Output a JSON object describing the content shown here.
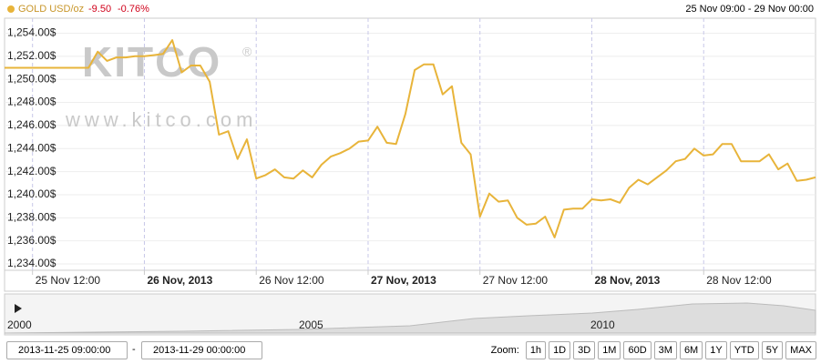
{
  "header": {
    "symbol": "GOLD USD/oz",
    "change": "-9.50",
    "change_percent": "-0.76%",
    "range": "25 Nov 09:00 - 29 Nov 00:00"
  },
  "watermark": {
    "logo": "KITCO",
    "registered": "®",
    "url": "www.kitco.com"
  },
  "chart_data": {
    "type": "line",
    "grid": true,
    "x": [
      "2013-11-25T09:00",
      "2013-11-25T18:00",
      "2013-11-25T19:00",
      "2013-11-25T20:00",
      "2013-11-25T21:00",
      "2013-11-25T22:00",
      "2013-11-25T23:00",
      "2013-11-26T00:00",
      "2013-11-26T01:00",
      "2013-11-26T02:00",
      "2013-11-26T03:00",
      "2013-11-26T04:00",
      "2013-11-26T05:00",
      "2013-11-26T06:00",
      "2013-11-26T07:00",
      "2013-11-26T08:00",
      "2013-11-26T09:00",
      "2013-11-26T10:00",
      "2013-11-26T11:00",
      "2013-11-26T12:00",
      "2013-11-26T13:00",
      "2013-11-26T14:00",
      "2013-11-26T15:00",
      "2013-11-26T16:00",
      "2013-11-26T17:00",
      "2013-11-26T18:00",
      "2013-11-26T19:00",
      "2013-11-26T20:00",
      "2013-11-26T21:00",
      "2013-11-26T22:00",
      "2013-11-26T23:00",
      "2013-11-27T00:00",
      "2013-11-27T01:00",
      "2013-11-27T02:00",
      "2013-11-27T03:00",
      "2013-11-27T04:00",
      "2013-11-27T05:00",
      "2013-11-27T06:00",
      "2013-11-27T07:00",
      "2013-11-27T08:00",
      "2013-11-27T09:00",
      "2013-11-27T10:00",
      "2013-11-27T11:00",
      "2013-11-27T12:00",
      "2013-11-27T13:00",
      "2013-11-27T14:00",
      "2013-11-27T15:00",
      "2013-11-27T16:00",
      "2013-11-27T17:00",
      "2013-11-27T18:00",
      "2013-11-27T19:00",
      "2013-11-27T20:00",
      "2013-11-27T21:00",
      "2013-11-27T22:00",
      "2013-11-27T23:00",
      "2013-11-28T00:00",
      "2013-11-28T01:00",
      "2013-11-28T02:00",
      "2013-11-28T03:00",
      "2013-11-28T04:00",
      "2013-11-28T05:00",
      "2013-11-28T06:00",
      "2013-11-28T07:00",
      "2013-11-28T08:00",
      "2013-11-28T09:00",
      "2013-11-28T10:00",
      "2013-11-28T11:00",
      "2013-11-28T12:00",
      "2013-11-28T13:00",
      "2013-11-28T14:00",
      "2013-11-28T15:00",
      "2013-11-28T16:00",
      "2013-11-28T17:00",
      "2013-11-28T18:00",
      "2013-11-28T19:00",
      "2013-11-28T20:00",
      "2013-11-28T21:00",
      "2013-11-28T22:00",
      "2013-11-28T23:00",
      "2013-11-29T00:00"
    ],
    "series": [
      {
        "name": "GOLD USD/oz",
        "color": "#e8b43a",
        "values": [
          1251.0,
          1251.0,
          1252.4,
          1251.6,
          1251.9,
          1251.9,
          1252.0,
          1252.0,
          1252.1,
          1252.2,
          1253.4,
          1250.6,
          1251.2,
          1251.2,
          1249.8,
          1245.2,
          1245.5,
          1243.1,
          1244.8,
          1241.4,
          1241.7,
          1242.2,
          1241.5,
          1241.4,
          1242.1,
          1241.5,
          1242.6,
          1243.3,
          1243.6,
          1244.0,
          1244.6,
          1244.7,
          1245.9,
          1244.5,
          1244.4,
          1247.0,
          1250.8,
          1251.3,
          1251.3,
          1248.7,
          1249.4,
          1244.5,
          1243.5,
          1238.1,
          1240.1,
          1239.4,
          1239.5,
          1238.0,
          1237.4,
          1237.5,
          1238.1,
          1236.3,
          1238.7,
          1238.8,
          1238.8,
          1239.6,
          1239.5,
          1239.6,
          1239.3,
          1240.6,
          1241.3,
          1240.9,
          1241.5,
          1242.1,
          1242.9,
          1243.1,
          1244.0,
          1243.4,
          1243.5,
          1244.4,
          1244.4,
          1242.9,
          1242.9,
          1242.9,
          1243.5,
          1242.2,
          1242.7,
          1241.2,
          1241.3,
          1241.5
        ]
      }
    ],
    "xlim": [
      "2013-11-25T09:00",
      "2013-11-29T00:00"
    ],
    "xticks": [
      {
        "value": "2013-11-25T12:00",
        "label": "25 Nov 12:00"
      },
      {
        "value": "2013-11-26T00:00",
        "label": "26 Nov, 2013"
      },
      {
        "value": "2013-11-26T12:00",
        "label": "26 Nov 12:00"
      },
      {
        "value": "2013-11-27T00:00",
        "label": "27 Nov, 2013"
      },
      {
        "value": "2013-11-27T12:00",
        "label": "27 Nov 12:00"
      },
      {
        "value": "2013-11-28T00:00",
        "label": "28 Nov, 2013"
      },
      {
        "value": "2013-11-28T12:00",
        "label": "28 Nov 12:00"
      }
    ],
    "ylim": [
      1233.45,
      1255.3
    ],
    "yticks": [
      {
        "value": 1234,
        "label": "1,234.00$"
      },
      {
        "value": 1236,
        "label": "1,236.00$"
      },
      {
        "value": 1238,
        "label": "1,238.00$"
      },
      {
        "value": 1240,
        "label": "1,240.00$"
      },
      {
        "value": 1242,
        "label": "1,242.00$"
      },
      {
        "value": 1244,
        "label": "1,244.00$"
      },
      {
        "value": 1246,
        "label": "1,246.00$"
      },
      {
        "value": 1248,
        "label": "1,248.00$"
      },
      {
        "value": 1250,
        "label": "1,250.00$"
      },
      {
        "value": 1252,
        "label": "1,252.00$"
      },
      {
        "value": 1254,
        "label": "1,254.00$"
      }
    ]
  },
  "navigator": {
    "labels": [
      "2000",
      "2005",
      "2010"
    ]
  },
  "controls": {
    "from": "2013-11-25 09:00:00",
    "separator": "-",
    "to": "2013-11-29 00:00:00",
    "zoom_label": "Zoom:",
    "zoom_buttons": [
      "1h",
      "1D",
      "3D",
      "1M",
      "60D",
      "3M",
      "6M",
      "1Y",
      "YTD",
      "5Y",
      "MAX"
    ]
  }
}
